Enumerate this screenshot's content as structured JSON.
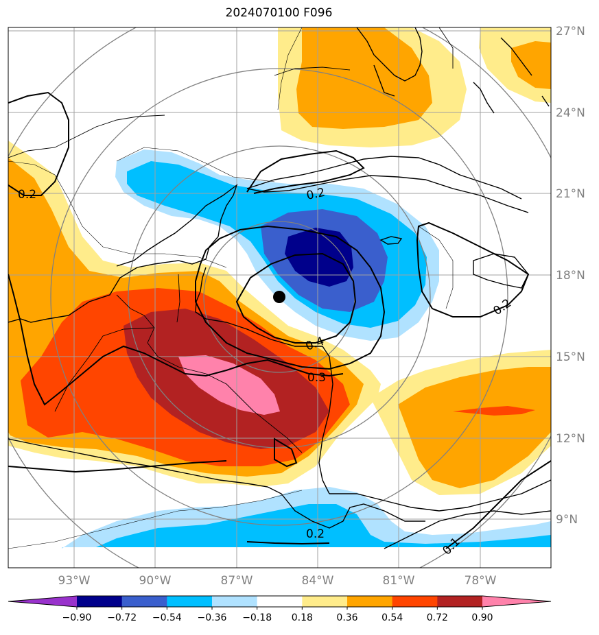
{
  "title": "2024070100 F096",
  "latitude_labels": [
    "27°N",
    "24°N",
    "21°N",
    "18°N",
    "15°N",
    "12°N",
    "9°N"
  ],
  "longitude_labels": [
    "93°W",
    "90°W",
    "87°W",
    "84°W",
    "81°W",
    "78°W"
  ],
  "contour_labels": [
    "0.2",
    "0.2",
    "0.2",
    "0.4",
    "0.3",
    "0.2",
    "0.1"
  ],
  "colorbar": {
    "ticks": [
      "−0.90",
      "−0.72",
      "−0.54",
      "−0.36",
      "−0.18",
      "0.18",
      "0.36",
      "0.54",
      "0.72",
      "0.90"
    ],
    "colors": [
      "#9932cc",
      "#00008b",
      "#3a5fcd",
      "#00bfff",
      "#b0e2ff",
      "#ffffff",
      "#ffec8b",
      "#ffa500",
      "#ff4500",
      "#b22222",
      "#ff82ab"
    ]
  },
  "colors": {
    "pink": "#ff82ab",
    "darkred": "#b22222",
    "orangered": "#ff4500",
    "orange": "#ffa500",
    "lightyellow": "#ffec8b",
    "lightblue": "#b0e2ff",
    "deepskyblue": "#00bfff",
    "royalblue": "#3a5fcd",
    "navy": "#00008b",
    "grid": "#a0a0a0",
    "rings": "#808080"
  },
  "storm_center_marker": "filled-circle"
}
